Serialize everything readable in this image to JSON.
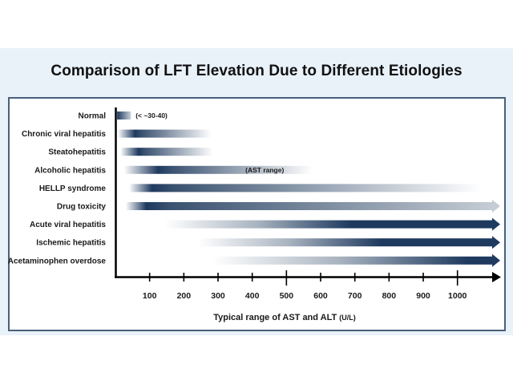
{
  "chart_data": {
    "type": "bar",
    "subtype": "horizontal-range-gradient",
    "title": "Comparison of LFT Elevation Due to Different Etiologies",
    "xlabel": "Typical range of AST and ALT",
    "xlabel_unit": "(U/L)",
    "ylabel": "",
    "xlim": [
      0,
      1100
    ],
    "xticks": [
      100,
      200,
      300,
      400,
      500,
      600,
      700,
      800,
      900,
      1000
    ],
    "major_ticks": [
      500,
      1000
    ],
    "grid": false,
    "categories": [
      "Normal",
      "Chronic viral hepatitis",
      "Steatohepatitis",
      "Alcoholic hepatitis",
      "HELLP syndrome",
      "Drug toxicity",
      "Acute viral hepatitis",
      "Ischemic hepatitis",
      "Acetaminophen overdose"
    ],
    "series": [
      {
        "name": "Normal",
        "start": 5,
        "end": 45,
        "peak": 5,
        "open_ended": false,
        "annotation": "(< ~30-40)"
      },
      {
        "name": "Chronic viral hepatitis",
        "start": 7,
        "end": 280,
        "peak": 60,
        "open_ended": false,
        "annotation": ""
      },
      {
        "name": "Steatohepatitis",
        "start": 15,
        "end": 285,
        "peak": 70,
        "open_ended": false,
        "annotation": ""
      },
      {
        "name": "Alcoholic hepatitis",
        "start": 25,
        "end": 575,
        "peak": 130,
        "open_ended": false,
        "annotation": "(AST range)"
      },
      {
        "name": "HELLP syndrome",
        "start": 40,
        "end": 1070,
        "peak": 110,
        "open_ended": false,
        "annotation": ""
      },
      {
        "name": "Drug toxicity",
        "start": 30,
        "end": 1000,
        "peak": 95,
        "open_ended": true,
        "annotation": ""
      },
      {
        "name": "Acute viral hepatitis",
        "start": 145,
        "end": 1000,
        "peak": 700,
        "open_ended": true,
        "annotation": ""
      },
      {
        "name": "Ischemic hepatitis",
        "start": 240,
        "end": 1000,
        "peak": 790,
        "open_ended": true,
        "annotation": ""
      },
      {
        "name": "Acetaminophen overdose",
        "start": 285,
        "end": 1000,
        "peak": 1050,
        "open_ended": true,
        "annotation": ""
      }
    ],
    "colors": {
      "bar_dark": "#1f3a5f",
      "bar_light": "#ffffff",
      "axis": "#000000",
      "frame": "#4a5f7a",
      "slide_bg": "#e9f1f9"
    }
  }
}
